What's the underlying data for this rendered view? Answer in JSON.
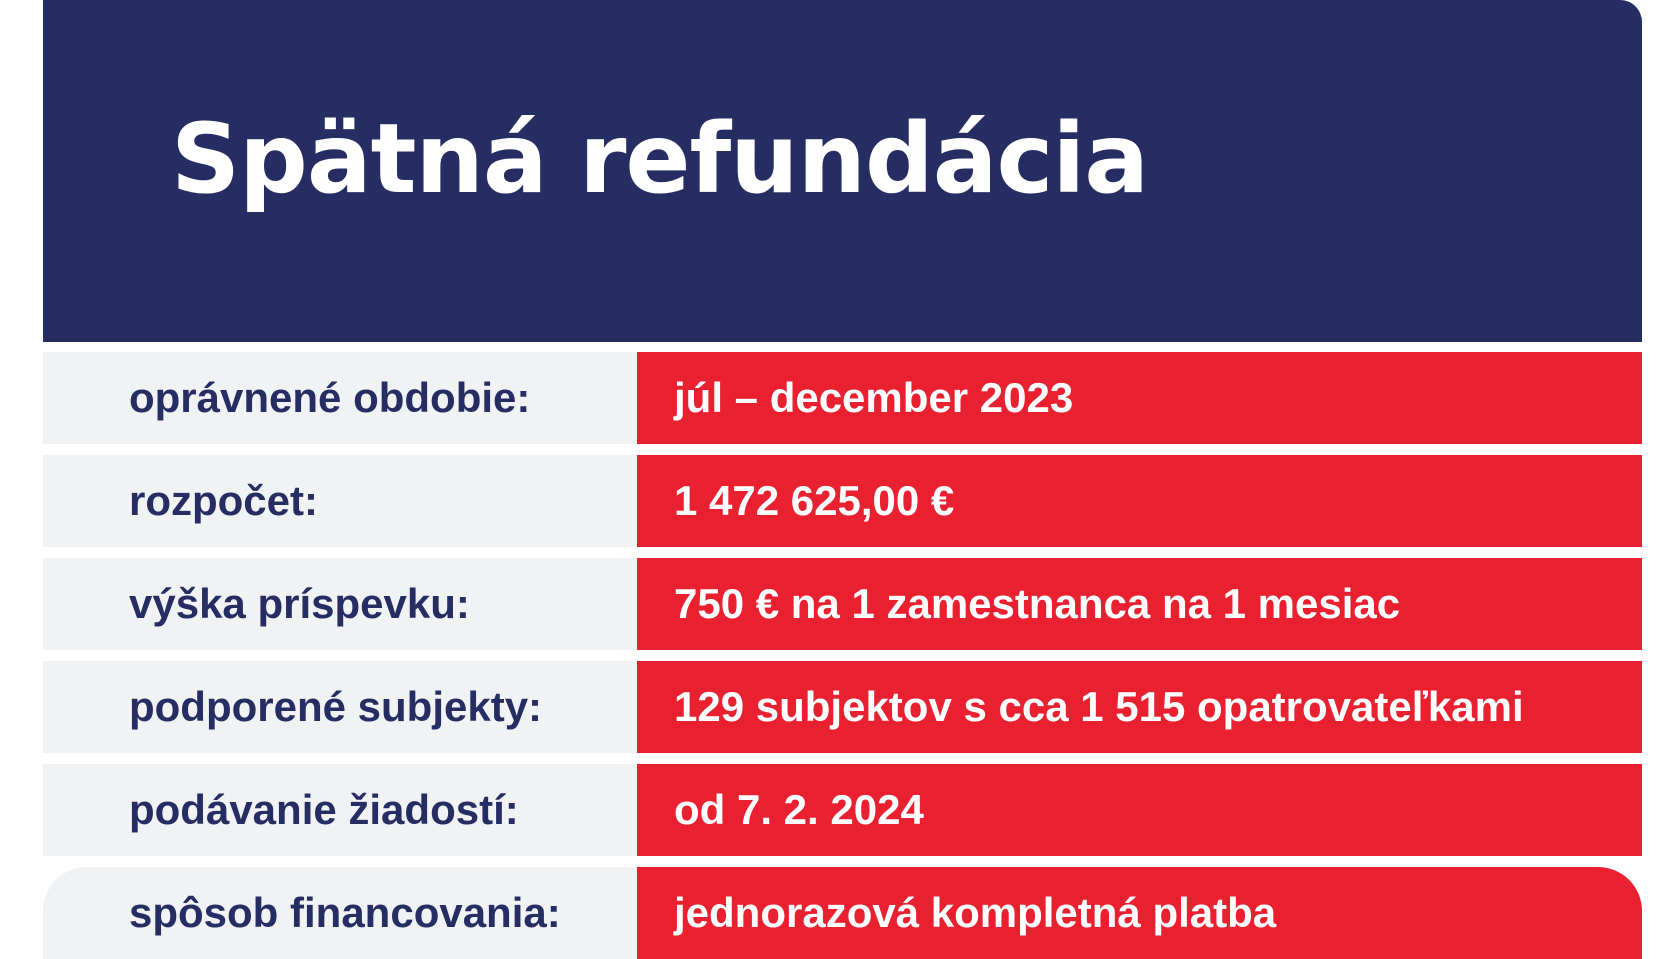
{
  "header": {
    "title": "Spätná refundácia"
  },
  "rows": [
    {
      "label": "oprávnené obdobie:",
      "value": "júl – december 2023"
    },
    {
      "label": "rozpočet:",
      "value": "1 472 625,00 €"
    },
    {
      "label": "výška príspevku:",
      "value": "750 € na 1 zamestnanca na 1 mesiac"
    },
    {
      "label": "podporené subjekty:",
      "value": "129 subjektov s cca 1 515 opatrovateľkami"
    },
    {
      "label": "podávanie žiadostí:",
      "value": "od 7. 2. 2024"
    },
    {
      "label": "spôsob financovania:",
      "value": "jednorazová kompletná platba"
    }
  ],
  "colors": {
    "header_bg": "#262d63",
    "label_bg": "#f0f2f4",
    "label_text": "#262d63",
    "value_bg": "#e8202f",
    "value_text": "#ffffff"
  }
}
